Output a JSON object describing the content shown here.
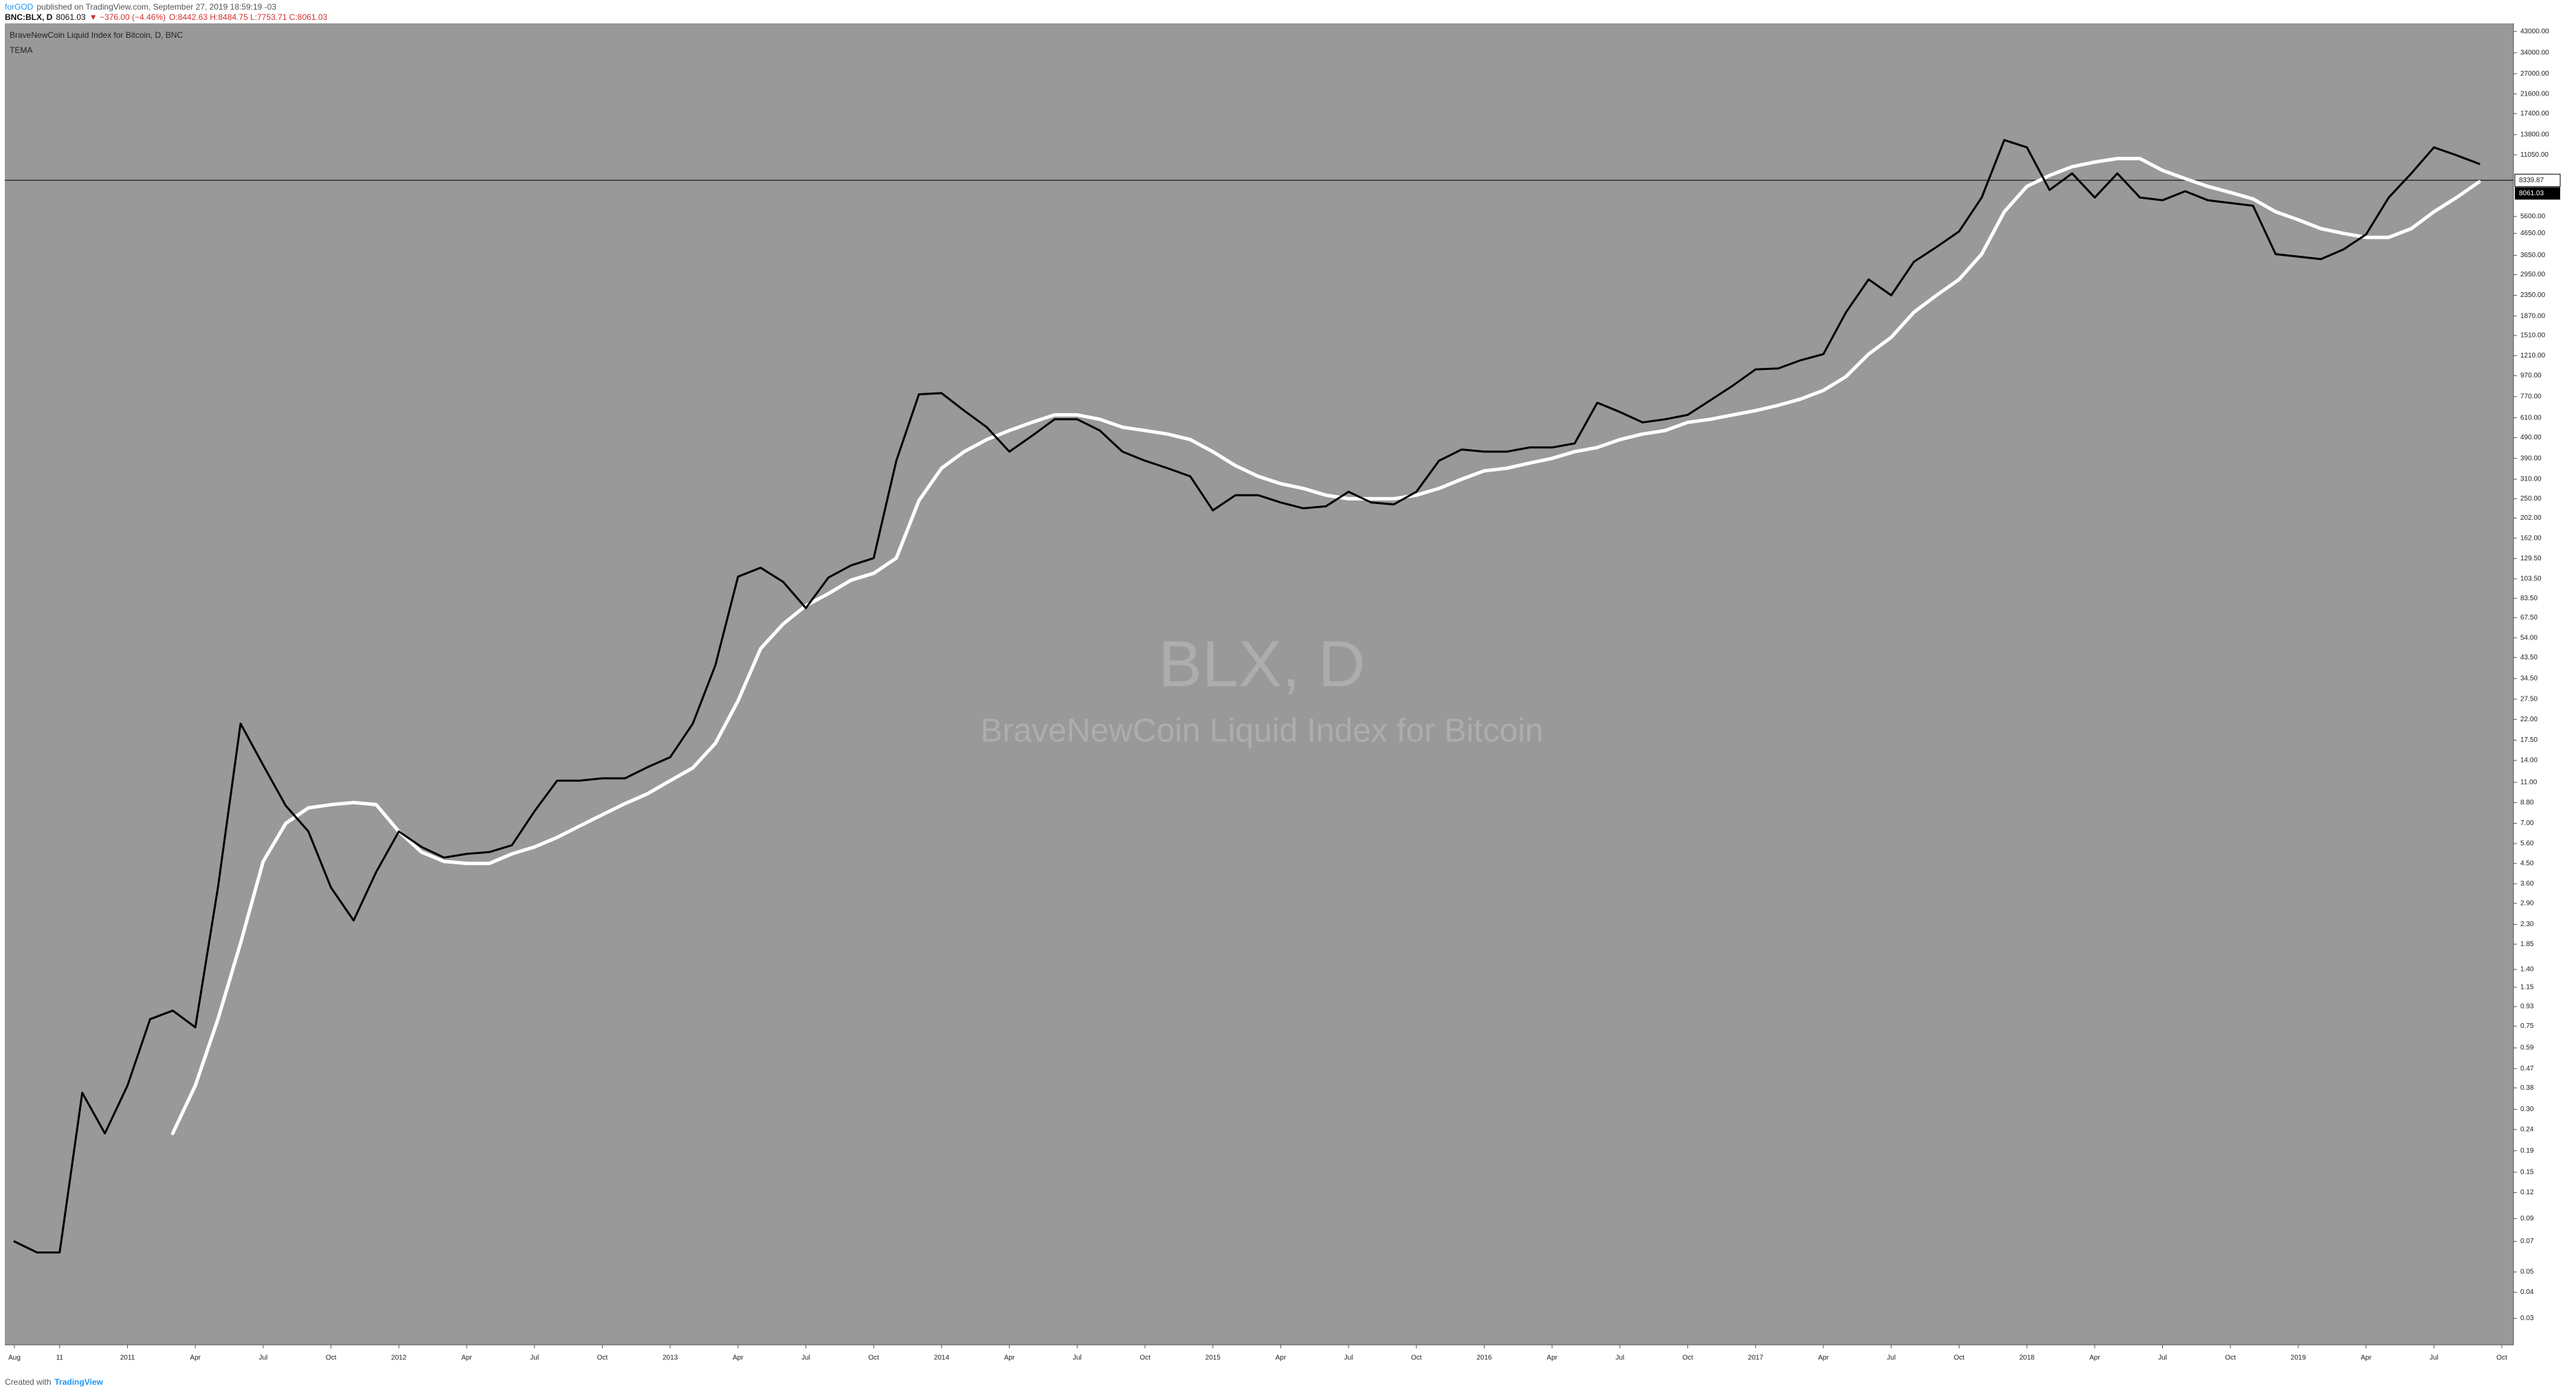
{
  "header": {
    "author": "forGOD",
    "published": "published on TradingView.com, September 27, 2019 18:59:19 -03",
    "symbol": "BNC:BLX, D",
    "last": "8061.03",
    "change": "▼ −376.00 (−4.46%)",
    "ohlc": "O:8442.63 H:8484.75 L:7753.71 C:8061.03"
  },
  "footer": {
    "created": "Created with",
    "brand": "TradingView"
  },
  "chart_data": {
    "type": "line",
    "log_scale": true,
    "grid": false,
    "watermark": "BLX, D",
    "watermark_subtitle": "BraveNewCoin Liquid Index for Bitcoin",
    "price_line": 8339.87,
    "last_price": 8061.03,
    "categories": [
      "Aug",
      null,
      "11",
      null,
      null,
      "2011",
      null,
      null,
      "Apr",
      null,
      null,
      "Jul",
      null,
      null,
      "Oct",
      null,
      null,
      "2012",
      null,
      null,
      "Apr",
      null,
      null,
      "Jul",
      null,
      null,
      "Oct",
      null,
      null,
      "2013",
      null,
      null,
      "Apr",
      null,
      null,
      "Jul",
      null,
      null,
      "Oct",
      null,
      null,
      "2014",
      null,
      null,
      "Apr",
      null,
      null,
      "Jul",
      null,
      null,
      "Oct",
      null,
      null,
      "2015",
      null,
      null,
      "Apr",
      null,
      null,
      "Jul",
      null,
      null,
      "Oct",
      null,
      null,
      "2016",
      null,
      null,
      "Apr",
      null,
      null,
      "Jul",
      null,
      null,
      "Oct",
      null,
      null,
      "2017",
      null,
      null,
      "Apr",
      null,
      null,
      "Jul",
      null,
      null,
      "Oct",
      null,
      null,
      "2018",
      null,
      null,
      "Apr",
      null,
      null,
      "Jul",
      null,
      null,
      "Oct",
      null,
      null,
      "2019",
      null,
      null,
      "Apr",
      null,
      null,
      "Jul",
      null,
      null,
      "Oct"
    ],
    "series": [
      {
        "name": "BraveNewCoin Liquid Index for Bitcoin, D, BNC",
        "color": "#000000",
        "values": [
          0.07,
          0.062,
          0.062,
          0.36,
          0.23,
          0.39,
          0.81,
          0.89,
          0.74,
          3.45,
          21,
          13.3,
          8.5,
          6.4,
          3.45,
          2.4,
          4.1,
          6.4,
          5.4,
          4.8,
          5.0,
          5.1,
          5.5,
          8.0,
          11.2,
          11.2,
          11.5,
          11.5,
          13,
          14.5,
          21,
          40,
          106,
          117,
          100,
          75,
          105,
          120,
          130,
          380,
          790,
          800,
          660,
          550,
          420,
          500,
          600,
          600,
          530,
          420,
          380,
          350,
          320,
          220,
          260,
          260,
          240,
          225,
          230,
          270,
          240,
          235,
          270,
          380,
          430,
          420,
          420,
          440,
          440,
          460,
          720,
          650,
          580,
          600,
          630,
          740,
          870,
          1040,
          1050,
          1150,
          1230,
          1950,
          2800,
          2350,
          3400,
          4000,
          4750,
          6900,
          13000,
          12000,
          7500,
          9000,
          6900,
          9000,
          6900,
          6700,
          7400,
          6700,
          6500,
          6300,
          3700,
          3600,
          3500,
          3900,
          4600,
          6900,
          9000,
          12000,
          11000,
          10000,
          null
        ]
      },
      {
        "name": "TEMA",
        "color": "#ffffff",
        "values": [
          null,
          null,
          null,
          null,
          null,
          null,
          null,
          0.23,
          0.39,
          0.81,
          1.87,
          4.6,
          7.0,
          8.3,
          8.6,
          8.8,
          8.6,
          6.4,
          5.1,
          4.6,
          4.5,
          4.5,
          5.0,
          5.4,
          6.0,
          6.8,
          7.7,
          8.7,
          9.7,
          11.2,
          12.9,
          16.9,
          27,
          48,
          63,
          77,
          88,
          102,
          110,
          130,
          245,
          350,
          420,
          480,
          530,
          580,
          630,
          630,
          600,
          550,
          530,
          510,
          480,
          420,
          360,
          320,
          295,
          280,
          260,
          250,
          250,
          250,
          260,
          280,
          310,
          340,
          350,
          370,
          390,
          420,
          440,
          480,
          510,
          530,
          580,
          600,
          630,
          660,
          700,
          750,
          825,
          960,
          1230,
          1480,
          1950,
          2350,
          2800,
          3700,
          5900,
          7800,
          8800,
          9700,
          10200,
          10600,
          10600,
          9300,
          8500,
          7800,
          7300,
          6800,
          5900,
          5400,
          4900,
          4650,
          4450,
          4450,
          4900,
          5900,
          6900,
          8200,
          null
        ]
      }
    ],
    "ylim": [
      0.0224,
      47000
    ],
    "yticks": [
      {
        "value": 43000,
        "label": "43000.00"
      },
      {
        "value": 34000,
        "label": "34000.00"
      },
      {
        "value": 27000,
        "label": "27000.00"
      },
      {
        "value": 21600,
        "label": "21600.00"
      },
      {
        "value": 17400,
        "label": "17400.00"
      },
      {
        "value": 13800,
        "label": "13800.00"
      },
      {
        "value": 11050,
        "label": "11050.00"
      },
      {
        "value": 5600,
        "label": "5600.00"
      },
      {
        "value": 4650,
        "label": "4650.00"
      },
      {
        "value": 3650,
        "label": "3650.00"
      },
      {
        "value": 2950,
        "label": "2950.00"
      },
      {
        "value": 2350,
        "label": "2350.00"
      },
      {
        "value": 1870,
        "label": "1870.00"
      },
      {
        "value": 1510,
        "label": "1510.00"
      },
      {
        "value": 1210,
        "label": "1210.00"
      },
      {
        "value": 970,
        "label": "970.00"
      },
      {
        "value": 770,
        "label": "770.00"
      },
      {
        "value": 610,
        "label": "610.00"
      },
      {
        "value": 490,
        "label": "490.00"
      },
      {
        "value": 390,
        "label": "390.00"
      },
      {
        "value": 310,
        "label": "310.00"
      },
      {
        "value": 250,
        "label": "250.00"
      },
      {
        "value": 202,
        "label": "202.00"
      },
      {
        "value": 162,
        "label": "162.00"
      },
      {
        "value": 129.5,
        "label": "129.50"
      },
      {
        "value": 103.5,
        "label": "103.50"
      },
      {
        "value": 83.5,
        "label": "83.50"
      },
      {
        "value": 67.5,
        "label": "67.50"
      },
      {
        "value": 54,
        "label": "54.00"
      },
      {
        "value": 43.5,
        "label": "43.50"
      },
      {
        "value": 34.5,
        "label": "34.50"
      },
      {
        "value": 27.5,
        "label": "27.50"
      },
      {
        "value": 22,
        "label": "22.00"
      },
      {
        "value": 17.5,
        "label": "17.50"
      },
      {
        "value": 14,
        "label": "14.00"
      },
      {
        "value": 11,
        "label": "11.00"
      },
      {
        "value": 8.8,
        "label": "8.80"
      },
      {
        "value": 7,
        "label": "7.00"
      },
      {
        "value": 5.6,
        "label": "5.60"
      },
      {
        "value": 4.5,
        "label": "4.50"
      },
      {
        "value": 3.6,
        "label": "3.60"
      },
      {
        "value": 2.9,
        "label": "2.90"
      },
      {
        "value": 2.3,
        "label": "2.30"
      },
      1.85,
      {
        "value": 1.4,
        "label": "1.40"
      },
      1.15,
      0.93,
      0.75,
      0.59,
      0.47,
      0.38,
      {
        "value": 0.3,
        "label": "0.30"
      },
      0.24,
      0.19,
      0.15,
      0.12,
      0.09,
      0.07,
      0.05,
      0.04,
      0.03
    ]
  }
}
